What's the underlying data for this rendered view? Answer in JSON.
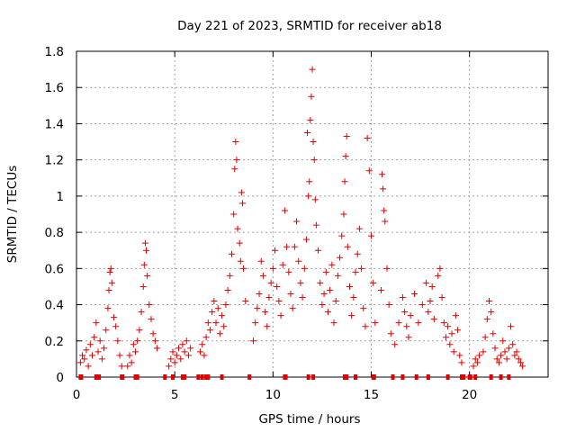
{
  "chart_data": {
    "type": "scatter",
    "title": "Day 221 of 2023, SRMTID for receiver ab18",
    "xlabel": "GPS time / hours",
    "ylabel": "SRMTID / TECUs",
    "xlim": [
      0,
      24
    ],
    "ylim": [
      0,
      1.8
    ],
    "xticks": [
      0,
      5,
      10,
      15,
      20
    ],
    "xtick_labels": [
      "0",
      "5",
      "10",
      "15",
      "20"
    ],
    "yticks": [
      0,
      0.2,
      0.4,
      0.6,
      0.8,
      1,
      1.2,
      1.4,
      1.6,
      1.8
    ],
    "ytick_labels": [
      "0",
      "0.2",
      "0.4",
      "0.6",
      "0.8",
      "1",
      "1.2",
      "1.4",
      "1.6",
      "1.8"
    ],
    "grid": true,
    "marker": "+",
    "color": "#e00000",
    "series": [
      {
        "name": "SRMTID",
        "points": [
          [
            0.2,
            0.08
          ],
          [
            0.3,
            0.12
          ],
          [
            0.4,
            0.1
          ],
          [
            0.5,
            0.15
          ],
          [
            0.6,
            0.06
          ],
          [
            0.7,
            0.18
          ],
          [
            0.8,
            0.12
          ],
          [
            0.9,
            0.22
          ],
          [
            1.0,
            0.3
          ],
          [
            1.1,
            0.14
          ],
          [
            1.2,
            0.2
          ],
          [
            1.3,
            0.1
          ],
          [
            1.4,
            0.16
          ],
          [
            1.5,
            0.26
          ],
          [
            1.6,
            0.38
          ],
          [
            1.65,
            0.48
          ],
          [
            1.7,
            0.58
          ],
          [
            1.75,
            0.6
          ],
          [
            1.8,
            0.52
          ],
          [
            1.9,
            0.33
          ],
          [
            2.0,
            0.28
          ],
          [
            2.1,
            0.2
          ],
          [
            2.2,
            0.12
          ],
          [
            2.3,
            0.06
          ],
          [
            2.6,
            0.06
          ],
          [
            2.7,
            0.12
          ],
          [
            2.8,
            0.08
          ],
          [
            2.9,
            0.18
          ],
          [
            3.0,
            0.14
          ],
          [
            3.1,
            0.2
          ],
          [
            3.2,
            0.26
          ],
          [
            3.3,
            0.36
          ],
          [
            3.4,
            0.5
          ],
          [
            3.45,
            0.62
          ],
          [
            3.5,
            0.74
          ],
          [
            3.55,
            0.7
          ],
          [
            3.6,
            0.56
          ],
          [
            3.7,
            0.4
          ],
          [
            3.8,
            0.32
          ],
          [
            3.9,
            0.24
          ],
          [
            4.0,
            0.2
          ],
          [
            4.1,
            0.16
          ],
          [
            4.7,
            0.06
          ],
          [
            4.8,
            0.1
          ],
          [
            4.9,
            0.14
          ],
          [
            5.0,
            0.08
          ],
          [
            5.1,
            0.12
          ],
          [
            5.2,
            0.16
          ],
          [
            5.3,
            0.1
          ],
          [
            5.4,
            0.18
          ],
          [
            5.5,
            0.14
          ],
          [
            5.6,
            0.2
          ],
          [
            5.7,
            0.12
          ],
          [
            5.8,
            0.16
          ],
          [
            6.3,
            0.14
          ],
          [
            6.4,
            0.18
          ],
          [
            6.5,
            0.12
          ],
          [
            6.6,
            0.22
          ],
          [
            6.7,
            0.3
          ],
          [
            6.8,
            0.26
          ],
          [
            6.9,
            0.36
          ],
          [
            7.0,
            0.42
          ],
          [
            7.1,
            0.3
          ],
          [
            7.2,
            0.38
          ],
          [
            7.3,
            0.24
          ],
          [
            7.4,
            0.34
          ],
          [
            7.5,
            0.28
          ],
          [
            7.6,
            0.4
          ],
          [
            7.7,
            0.48
          ],
          [
            7.8,
            0.56
          ],
          [
            7.9,
            0.68
          ],
          [
            8.0,
            0.9
          ],
          [
            8.05,
            1.15
          ],
          [
            8.1,
            1.3
          ],
          [
            8.15,
            1.2
          ],
          [
            8.2,
            0.82
          ],
          [
            8.3,
            0.74
          ],
          [
            8.35,
            0.64
          ],
          [
            8.4,
            1.02
          ],
          [
            8.45,
            0.96
          ],
          [
            8.5,
            0.6
          ],
          [
            8.6,
            0.42
          ],
          [
            9.0,
            0.2
          ],
          [
            9.1,
            0.3
          ],
          [
            9.2,
            0.38
          ],
          [
            9.3,
            0.46
          ],
          [
            9.4,
            0.64
          ],
          [
            9.5,
            0.56
          ],
          [
            9.6,
            0.36
          ],
          [
            9.7,
            0.28
          ],
          [
            9.8,
            0.44
          ],
          [
            9.9,
            0.52
          ],
          [
            10.0,
            0.6
          ],
          [
            10.1,
            0.7
          ],
          [
            10.2,
            0.5
          ],
          [
            10.3,
            0.42
          ],
          [
            10.4,
            0.34
          ],
          [
            10.5,
            0.62
          ],
          [
            10.6,
            0.92
          ],
          [
            10.7,
            0.72
          ],
          [
            10.8,
            0.58
          ],
          [
            10.9,
            0.46
          ],
          [
            11.0,
            0.38
          ],
          [
            11.1,
            0.72
          ],
          [
            11.2,
            0.86
          ],
          [
            11.3,
            0.64
          ],
          [
            11.4,
            0.52
          ],
          [
            11.5,
            0.44
          ],
          [
            11.6,
            0.6
          ],
          [
            11.7,
            0.76
          ],
          [
            11.75,
            1.35
          ],
          [
            11.8,
            1.0
          ],
          [
            11.85,
            1.08
          ],
          [
            11.9,
            1.42
          ],
          [
            11.95,
            1.55
          ],
          [
            12.0,
            1.7
          ],
          [
            12.05,
            1.3
          ],
          [
            12.1,
            1.2
          ],
          [
            12.15,
            0.98
          ],
          [
            12.2,
            0.84
          ],
          [
            12.3,
            0.7
          ],
          [
            12.4,
            0.52
          ],
          [
            12.5,
            0.4
          ],
          [
            12.6,
            0.46
          ],
          [
            12.7,
            0.58
          ],
          [
            12.8,
            0.36
          ],
          [
            12.9,
            0.48
          ],
          [
            13.0,
            0.62
          ],
          [
            13.1,
            0.3
          ],
          [
            13.2,
            0.42
          ],
          [
            13.3,
            0.56
          ],
          [
            13.4,
            0.66
          ],
          [
            13.5,
            0.78
          ],
          [
            13.6,
            0.9
          ],
          [
            13.65,
            1.08
          ],
          [
            13.7,
            1.22
          ],
          [
            13.75,
            1.33
          ],
          [
            13.8,
            0.72
          ],
          [
            13.9,
            0.5
          ],
          [
            14.0,
            0.34
          ],
          [
            14.1,
            0.44
          ],
          [
            14.2,
            0.58
          ],
          [
            14.3,
            0.68
          ],
          [
            14.4,
            0.82
          ],
          [
            14.5,
            0.6
          ],
          [
            14.6,
            0.38
          ],
          [
            14.7,
            0.28
          ],
          [
            14.8,
            1.32
          ],
          [
            14.9,
            1.14
          ],
          [
            15.0,
            0.78
          ],
          [
            15.1,
            0.52
          ],
          [
            15.2,
            0.3
          ],
          [
            15.5,
            0.48
          ],
          [
            15.55,
            1.12
          ],
          [
            15.6,
            1.04
          ],
          [
            15.65,
            0.92
          ],
          [
            15.7,
            0.86
          ],
          [
            15.8,
            0.6
          ],
          [
            15.9,
            0.4
          ],
          [
            16.0,
            0.24
          ],
          [
            16.2,
            0.18
          ],
          [
            16.4,
            0.3
          ],
          [
            16.6,
            0.44
          ],
          [
            16.7,
            0.36
          ],
          [
            16.8,
            0.28
          ],
          [
            16.9,
            0.22
          ],
          [
            17.0,
            0.34
          ],
          [
            17.2,
            0.46
          ],
          [
            17.4,
            0.3
          ],
          [
            17.6,
            0.4
          ],
          [
            17.8,
            0.52
          ],
          [
            17.9,
            0.36
          ],
          [
            18.0,
            0.42
          ],
          [
            18.1,
            0.5
          ],
          [
            18.2,
            0.32
          ],
          [
            18.4,
            0.56
          ],
          [
            18.5,
            0.6
          ],
          [
            18.6,
            0.44
          ],
          [
            18.7,
            0.3
          ],
          [
            18.8,
            0.22
          ],
          [
            18.9,
            0.28
          ],
          [
            19.0,
            0.18
          ],
          [
            19.1,
            0.24
          ],
          [
            19.2,
            0.14
          ],
          [
            19.3,
            0.34
          ],
          [
            19.4,
            0.26
          ],
          [
            19.5,
            0.12
          ],
          [
            19.6,
            0.08
          ],
          [
            20.2,
            0.06
          ],
          [
            20.3,
            0.1
          ],
          [
            20.4,
            0.08
          ],
          [
            20.5,
            0.12
          ],
          [
            20.7,
            0.14
          ],
          [
            20.8,
            0.22
          ],
          [
            20.9,
            0.32
          ],
          [
            21.0,
            0.42
          ],
          [
            21.1,
            0.36
          ],
          [
            21.2,
            0.24
          ],
          [
            21.3,
            0.16
          ],
          [
            21.4,
            0.1
          ],
          [
            21.5,
            0.08
          ],
          [
            21.6,
            0.12
          ],
          [
            21.7,
            0.2
          ],
          [
            21.8,
            0.14
          ],
          [
            21.9,
            0.1
          ],
          [
            22.0,
            0.16
          ],
          [
            22.1,
            0.28
          ],
          [
            22.2,
            0.18
          ],
          [
            22.3,
            0.12
          ],
          [
            22.4,
            0.14
          ],
          [
            22.5,
            0.1
          ],
          [
            22.6,
            0.08
          ],
          [
            22.7,
            0.06
          ]
        ]
      }
    ],
    "zero_points": [
      0.2,
      0.25,
      1.0,
      1.05,
      1.15,
      2.3,
      2.35,
      3.0,
      3.1,
      4.5,
      4.9,
      5.4,
      5.5,
      6.2,
      6.4,
      6.6,
      6.7,
      7.4,
      8.8,
      10.6,
      10.65,
      11.8,
      12.05,
      13.65,
      13.75,
      14.2,
      15.1,
      15.15,
      16.1,
      16.6,
      17.3,
      17.9,
      18.9,
      19.6,
      19.7,
      20.0,
      20.05,
      20.3,
      21.1,
      21.6,
      22.0
    ]
  }
}
